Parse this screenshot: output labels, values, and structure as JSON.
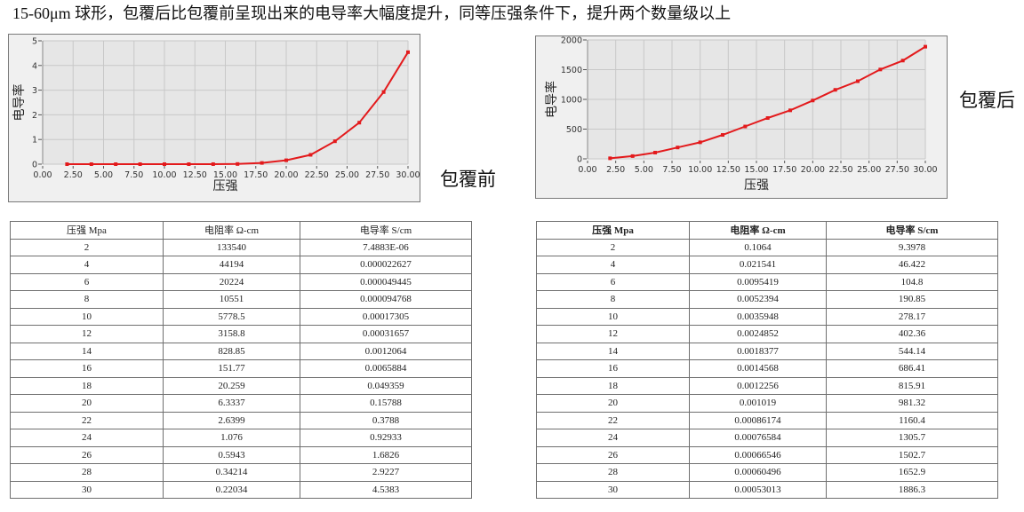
{
  "headline": "15-60μm 球形，包覆后比包覆前呈现出来的电导率大幅度提升，同等压强条件下，提升两个数量级以上",
  "labels": {
    "before": "包覆前",
    "after": "包覆后"
  },
  "colors": {
    "line": "#e31a1c",
    "plot_bg": "#e6e6e6",
    "frame_bg": "#f0f0f0",
    "grid": "#c8c8c8"
  },
  "chart_data": [
    {
      "id": "before",
      "type": "line",
      "title": "包覆前",
      "xlabel": "压强",
      "ylabel": "电导率",
      "xlim": [
        0,
        30
      ],
      "ylim": [
        0,
        5
      ],
      "xticks": [
        "0.00",
        "2.50",
        "5.00",
        "7.50",
        "10.00",
        "12.50",
        "15.00",
        "17.50",
        "20.00",
        "22.50",
        "25.00",
        "27.50",
        "30.00"
      ],
      "yticks": [
        "0",
        "1",
        "2",
        "3",
        "4",
        "5"
      ],
      "grid": true,
      "x": [
        2,
        4,
        6,
        8,
        10,
        12,
        14,
        16,
        18,
        20,
        22,
        24,
        26,
        28,
        30
      ],
      "series": [
        {
          "name": "电导率 S/cm",
          "values": [
            7.4883e-06,
            2.2627e-05,
            4.9445e-05,
            9.4768e-05,
            0.00017305,
            0.00031657,
            0.0012064,
            0.0065884,
            0.049359,
            0.15788,
            0.3788,
            0.92933,
            1.6826,
            2.9227,
            4.5383
          ]
        }
      ]
    },
    {
      "id": "after",
      "type": "line",
      "title": "包覆后",
      "xlabel": "压强",
      "ylabel": "电导率",
      "xlim": [
        0,
        30
      ],
      "ylim": [
        0,
        2000
      ],
      "xticks": [
        "0.00",
        "2.50",
        "5.00",
        "7.50",
        "10.00",
        "12.50",
        "15.00",
        "17.50",
        "20.00",
        "22.50",
        "25.00",
        "27.50",
        "30.00"
      ],
      "yticks": [
        "0",
        "500",
        "1000",
        "1500",
        "2000"
      ],
      "grid": true,
      "x": [
        2,
        4,
        6,
        8,
        10,
        12,
        14,
        16,
        18,
        20,
        22,
        24,
        26,
        28,
        30
      ],
      "series": [
        {
          "name": "电导率 S/cm",
          "values": [
            9.3978,
            46.422,
            104.8,
            190.85,
            278.17,
            402.36,
            544.14,
            686.41,
            815.91,
            981.32,
            1160.4,
            1305.7,
            1502.7,
            1652.9,
            1886.3
          ]
        }
      ]
    }
  ],
  "tables": {
    "before": {
      "headers": [
        "压强 Mpa",
        "电阻率 Ω-cm",
        "电导率 S/cm"
      ],
      "rows": [
        [
          "2",
          "133540",
          "7.4883E-06"
        ],
        [
          "4",
          "44194",
          "0.000022627"
        ],
        [
          "6",
          "20224",
          "0.000049445"
        ],
        [
          "8",
          "10551",
          "0.000094768"
        ],
        [
          "10",
          "5778.5",
          "0.00017305"
        ],
        [
          "12",
          "3158.8",
          "0.00031657"
        ],
        [
          "14",
          "828.85",
          "0.0012064"
        ],
        [
          "16",
          "151.77",
          "0.0065884"
        ],
        [
          "18",
          "20.259",
          "0.049359"
        ],
        [
          "20",
          "6.3337",
          "0.15788"
        ],
        [
          "22",
          "2.6399",
          "0.3788"
        ],
        [
          "24",
          "1.076",
          "0.92933"
        ],
        [
          "26",
          "0.5943",
          "1.6826"
        ],
        [
          "28",
          "0.34214",
          "2.9227"
        ],
        [
          "30",
          "0.22034",
          "4.5383"
        ]
      ]
    },
    "after": {
      "headers": [
        "压强 Mpa",
        "电阻率 Ω-cm",
        "电导率 S/cm"
      ],
      "rows": [
        [
          "2",
          "0.1064",
          "9.3978"
        ],
        [
          "4",
          "0.021541",
          "46.422"
        ],
        [
          "6",
          "0.0095419",
          "104.8"
        ],
        [
          "8",
          "0.0052394",
          "190.85"
        ],
        [
          "10",
          "0.0035948",
          "278.17"
        ],
        [
          "12",
          "0.0024852",
          "402.36"
        ],
        [
          "14",
          "0.0018377",
          "544.14"
        ],
        [
          "16",
          "0.0014568",
          "686.41"
        ],
        [
          "18",
          "0.0012256",
          "815.91"
        ],
        [
          "20",
          "0.001019",
          "981.32"
        ],
        [
          "22",
          "0.00086174",
          "1160.4"
        ],
        [
          "24",
          "0.00076584",
          "1305.7"
        ],
        [
          "26",
          "0.00066546",
          "1502.7"
        ],
        [
          "28",
          "0.00060496",
          "1652.9"
        ],
        [
          "30",
          "0.00053013",
          "1886.3"
        ]
      ]
    }
  }
}
